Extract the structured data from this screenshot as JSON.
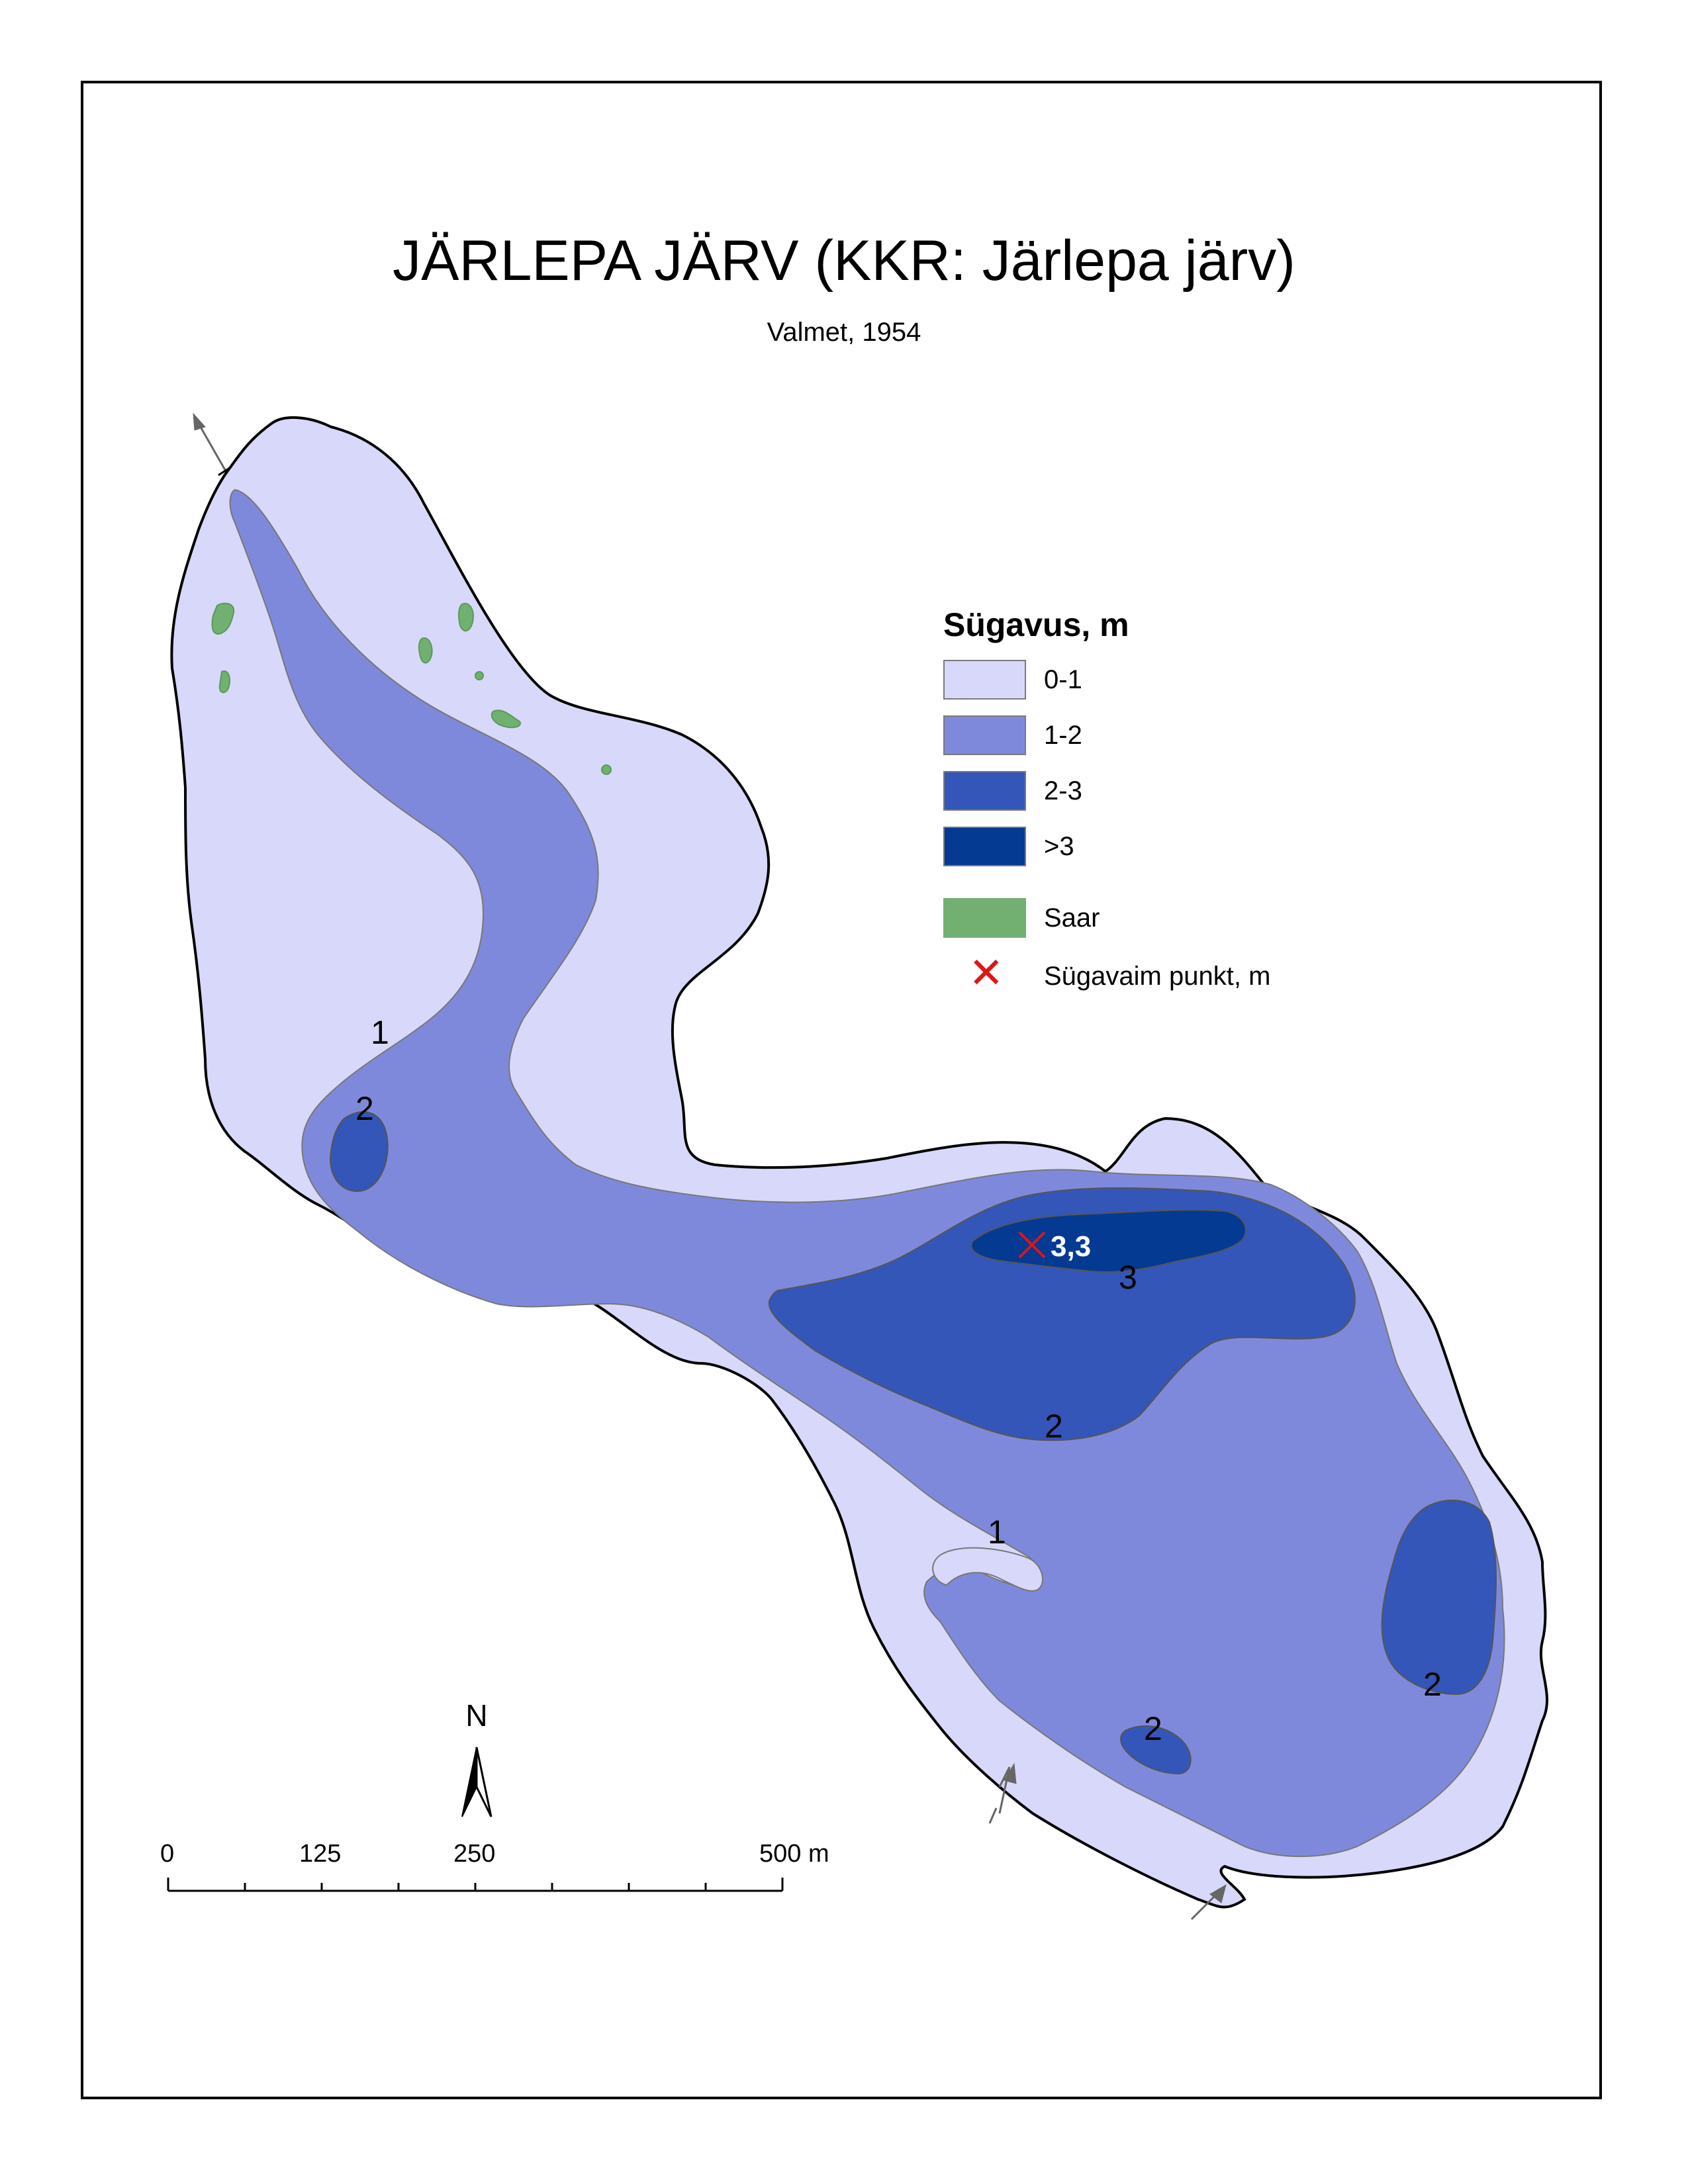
{
  "map": {
    "title": "JÄRLEPA JÄRV (KKR: Järlepa järv)",
    "subtitle": "Valmet, 1954"
  },
  "legend": {
    "title": "Sügavus, m",
    "items": [
      {
        "label": "0-1",
        "color": "#d8d8fa"
      },
      {
        "label": "1-2",
        "color": "#7f89dc"
      },
      {
        "label": "2-3",
        "color": "#3456b8"
      },
      {
        "label": ">3",
        "color": "#043a92"
      },
      {
        "label": "Saar",
        "color": "#72b072"
      }
    ],
    "deepest_point_label": "Sügavaim punkt, m",
    "deepest_point_color": "#e01515"
  },
  "depth_labels": {
    "nw_1": "1",
    "nw_2": "2",
    "central_3": "3",
    "central_2": "2",
    "se_1": "1",
    "east_2": "2",
    "south_2": "2"
  },
  "deepest_point": {
    "value": "3,3"
  },
  "north_arrow": {
    "label": "N"
  },
  "scale_bar": {
    "labels": [
      "0",
      "125",
      "250",
      "500 m"
    ]
  },
  "colors": {
    "shoreline": "#000000",
    "arrow": "#666666"
  }
}
